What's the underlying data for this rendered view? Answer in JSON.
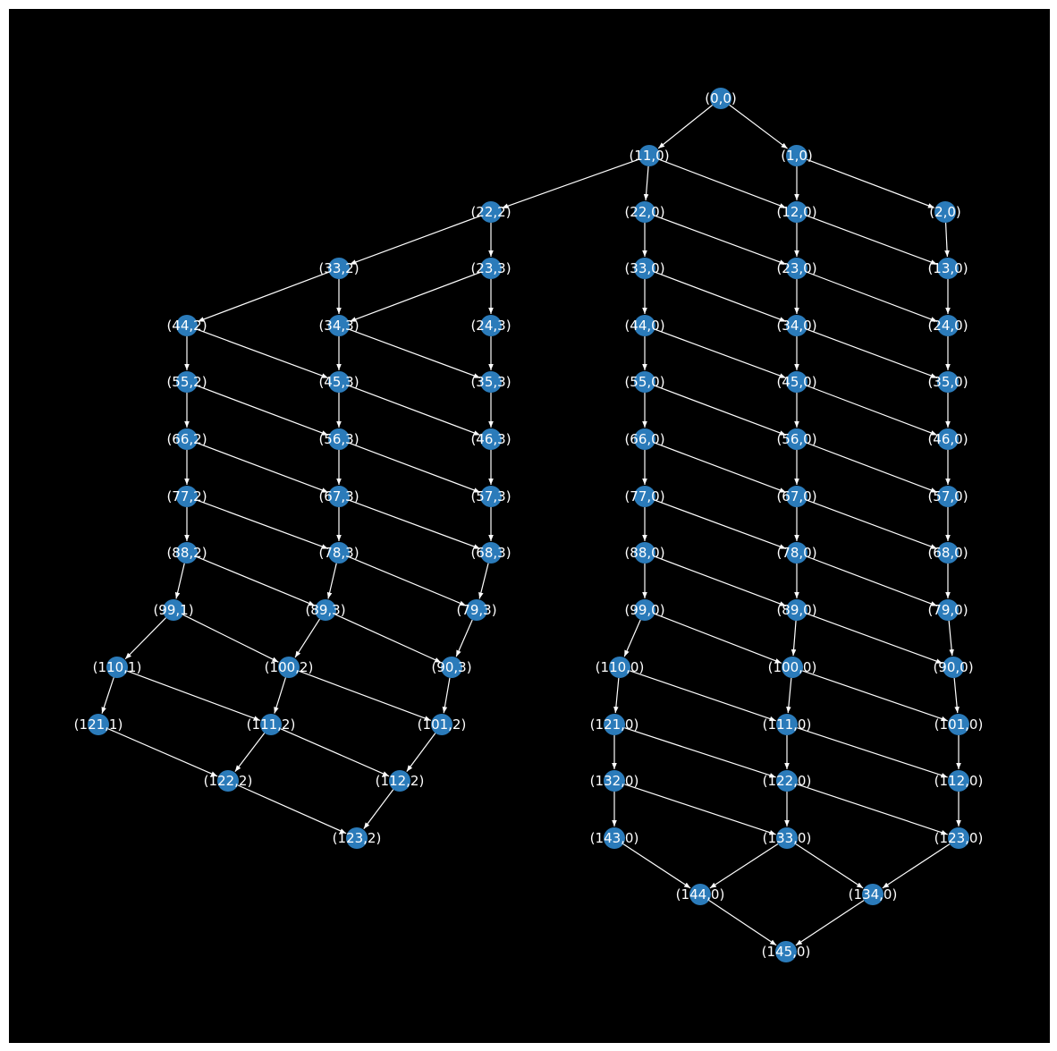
{
  "graph": {
    "background": "#000000",
    "frame_color": "#ffffff",
    "node_color": "#2b7bba",
    "edge_color": "#ffffff",
    "label_color": "#ffffff",
    "nodes": [
      {
        "id": "(0,0)"
      },
      {
        "id": "(11,0)"
      },
      {
        "id": "(1,0)"
      },
      {
        "id": "(22,2)"
      },
      {
        "id": "(22,0)"
      },
      {
        "id": "(12,0)"
      },
      {
        "id": "(2,0)"
      },
      {
        "id": "(33,2)"
      },
      {
        "id": "(23,3)"
      },
      {
        "id": "(33,0)"
      },
      {
        "id": "(23,0)"
      },
      {
        "id": "(13,0)"
      },
      {
        "id": "(44,2)"
      },
      {
        "id": "(34,3)"
      },
      {
        "id": "(24,3)"
      },
      {
        "id": "(44,0)"
      },
      {
        "id": "(34,0)"
      },
      {
        "id": "(24,0)"
      },
      {
        "id": "(55,2)"
      },
      {
        "id": "(45,3)"
      },
      {
        "id": "(35,3)"
      },
      {
        "id": "(55,0)"
      },
      {
        "id": "(45,0)"
      },
      {
        "id": "(35,0)"
      },
      {
        "id": "(66,2)"
      },
      {
        "id": "(56,3)"
      },
      {
        "id": "(46,3)"
      },
      {
        "id": "(66,0)"
      },
      {
        "id": "(56,0)"
      },
      {
        "id": "(46,0)"
      },
      {
        "id": "(77,2)"
      },
      {
        "id": "(67,3)"
      },
      {
        "id": "(57,3)"
      },
      {
        "id": "(77,0)"
      },
      {
        "id": "(67,0)"
      },
      {
        "id": "(57,0)"
      },
      {
        "id": "(88,2)"
      },
      {
        "id": "(78,3)"
      },
      {
        "id": "(68,3)"
      },
      {
        "id": "(88,0)"
      },
      {
        "id": "(78,0)"
      },
      {
        "id": "(68,0)"
      },
      {
        "id": "(99,1)"
      },
      {
        "id": "(89,3)"
      },
      {
        "id": "(79,3)"
      },
      {
        "id": "(99,0)"
      },
      {
        "id": "(89,0)"
      },
      {
        "id": "(79,0)"
      },
      {
        "id": "(110,1)"
      },
      {
        "id": "(100,2)"
      },
      {
        "id": "(90,3)"
      },
      {
        "id": "(110,0)"
      },
      {
        "id": "(100,0)"
      },
      {
        "id": "(90,0)"
      },
      {
        "id": "(121,1)"
      },
      {
        "id": "(111,2)"
      },
      {
        "id": "(101,2)"
      },
      {
        "id": "(121,0)"
      },
      {
        "id": "(111,0)"
      },
      {
        "id": "(101,0)"
      },
      {
        "id": "(122,2)"
      },
      {
        "id": "(112,2)"
      },
      {
        "id": "(132,0)"
      },
      {
        "id": "(122,0)"
      },
      {
        "id": "(112,0)"
      },
      {
        "id": "(123,2)"
      },
      {
        "id": "(143,0)"
      },
      {
        "id": "(133,0)"
      },
      {
        "id": "(123,0)"
      },
      {
        "id": "(144,0)"
      },
      {
        "id": "(134,0)"
      },
      {
        "id": "(145,0)"
      }
    ],
    "edges": [
      [
        "(0,0)",
        "(11,0)"
      ],
      [
        "(0,0)",
        "(1,0)"
      ],
      [
        "(1,0)",
        "(12,0)"
      ],
      [
        "(1,0)",
        "(2,0)"
      ],
      [
        "(11,0)",
        "(22,2)"
      ],
      [
        "(11,0)",
        "(22,0)"
      ],
      [
        "(11,0)",
        "(12,0)"
      ],
      [
        "(2,0)",
        "(13,0)"
      ],
      [
        "(12,0)",
        "(23,0)"
      ],
      [
        "(12,0)",
        "(13,0)"
      ],
      [
        "(22,0)",
        "(33,0)"
      ],
      [
        "(22,0)",
        "(23,0)"
      ],
      [
        "(22,2)",
        "(33,2)"
      ],
      [
        "(22,2)",
        "(23,3)"
      ],
      [
        "(33,2)",
        "(44,2)"
      ],
      [
        "(33,2)",
        "(34,3)"
      ],
      [
        "(23,3)",
        "(34,3)"
      ],
      [
        "(23,3)",
        "(24,3)"
      ],
      [
        "(33,0)",
        "(44,0)"
      ],
      [
        "(33,0)",
        "(34,0)"
      ],
      [
        "(23,0)",
        "(34,0)"
      ],
      [
        "(23,0)",
        "(24,0)"
      ],
      [
        "(13,0)",
        "(24,0)"
      ],
      [
        "(44,2)",
        "(55,2)"
      ],
      [
        "(44,2)",
        "(45,3)"
      ],
      [
        "(34,3)",
        "(45,3)"
      ],
      [
        "(34,3)",
        "(35,3)"
      ],
      [
        "(24,3)",
        "(35,3)"
      ],
      [
        "(44,0)",
        "(55,0)"
      ],
      [
        "(44,0)",
        "(45,0)"
      ],
      [
        "(34,0)",
        "(45,0)"
      ],
      [
        "(34,0)",
        "(35,0)"
      ],
      [
        "(24,0)",
        "(35,0)"
      ],
      [
        "(55,2)",
        "(66,2)"
      ],
      [
        "(55,2)",
        "(56,3)"
      ],
      [
        "(45,3)",
        "(56,3)"
      ],
      [
        "(45,3)",
        "(46,3)"
      ],
      [
        "(35,3)",
        "(46,3)"
      ],
      [
        "(55,0)",
        "(66,0)"
      ],
      [
        "(55,0)",
        "(56,0)"
      ],
      [
        "(45,0)",
        "(56,0)"
      ],
      [
        "(45,0)",
        "(46,0)"
      ],
      [
        "(35,0)",
        "(46,0)"
      ],
      [
        "(66,2)",
        "(77,2)"
      ],
      [
        "(66,2)",
        "(67,3)"
      ],
      [
        "(56,3)",
        "(67,3)"
      ],
      [
        "(56,3)",
        "(57,3)"
      ],
      [
        "(46,3)",
        "(57,3)"
      ],
      [
        "(66,0)",
        "(77,0)"
      ],
      [
        "(66,0)",
        "(67,0)"
      ],
      [
        "(56,0)",
        "(67,0)"
      ],
      [
        "(56,0)",
        "(57,0)"
      ],
      [
        "(46,0)",
        "(57,0)"
      ],
      [
        "(77,2)",
        "(88,2)"
      ],
      [
        "(77,2)",
        "(78,3)"
      ],
      [
        "(67,3)",
        "(78,3)"
      ],
      [
        "(67,3)",
        "(68,3)"
      ],
      [
        "(57,3)",
        "(68,3)"
      ],
      [
        "(77,0)",
        "(88,0)"
      ],
      [
        "(77,0)",
        "(78,0)"
      ],
      [
        "(67,0)",
        "(78,0)"
      ],
      [
        "(67,0)",
        "(68,0)"
      ],
      [
        "(57,0)",
        "(68,0)"
      ],
      [
        "(88,2)",
        "(99,1)"
      ],
      [
        "(88,2)",
        "(89,3)"
      ],
      [
        "(78,3)",
        "(89,3)"
      ],
      [
        "(78,3)",
        "(79,3)"
      ],
      [
        "(68,3)",
        "(79,3)"
      ],
      [
        "(88,0)",
        "(99,0)"
      ],
      [
        "(88,0)",
        "(89,0)"
      ],
      [
        "(78,0)",
        "(89,0)"
      ],
      [
        "(78,0)",
        "(79,0)"
      ],
      [
        "(68,0)",
        "(79,0)"
      ],
      [
        "(99,1)",
        "(110,1)"
      ],
      [
        "(99,1)",
        "(100,2)"
      ],
      [
        "(89,3)",
        "(100,2)"
      ],
      [
        "(89,3)",
        "(90,3)"
      ],
      [
        "(79,3)",
        "(90,3)"
      ],
      [
        "(99,0)",
        "(110,0)"
      ],
      [
        "(99,0)",
        "(100,0)"
      ],
      [
        "(89,0)",
        "(100,0)"
      ],
      [
        "(89,0)",
        "(90,0)"
      ],
      [
        "(79,0)",
        "(90,0)"
      ],
      [
        "(110,1)",
        "(121,1)"
      ],
      [
        "(110,1)",
        "(111,2)"
      ],
      [
        "(100,2)",
        "(111,2)"
      ],
      [
        "(100,2)",
        "(101,2)"
      ],
      [
        "(90,3)",
        "(101,2)"
      ],
      [
        "(110,0)",
        "(121,0)"
      ],
      [
        "(110,0)",
        "(111,0)"
      ],
      [
        "(100,0)",
        "(111,0)"
      ],
      [
        "(100,0)",
        "(101,0)"
      ],
      [
        "(90,0)",
        "(101,0)"
      ],
      [
        "(121,1)",
        "(122,2)"
      ],
      [
        "(111,2)",
        "(122,2)"
      ],
      [
        "(111,2)",
        "(112,2)"
      ],
      [
        "(101,2)",
        "(112,2)"
      ],
      [
        "(121,0)",
        "(132,0)"
      ],
      [
        "(121,0)",
        "(122,0)"
      ],
      [
        "(111,0)",
        "(122,0)"
      ],
      [
        "(111,0)",
        "(112,0)"
      ],
      [
        "(101,0)",
        "(112,0)"
      ],
      [
        "(122,2)",
        "(123,2)"
      ],
      [
        "(112,2)",
        "(123,2)"
      ],
      [
        "(132,0)",
        "(143,0)"
      ],
      [
        "(132,0)",
        "(133,0)"
      ],
      [
        "(122,0)",
        "(133,0)"
      ],
      [
        "(122,0)",
        "(123,0)"
      ],
      [
        "(112,0)",
        "(123,0)"
      ],
      [
        "(143,0)",
        "(144,0)"
      ],
      [
        "(133,0)",
        "(144,0)"
      ],
      [
        "(133,0)",
        "(134,0)"
      ],
      [
        "(123,0)",
        "(134,0)"
      ],
      [
        "(144,0)",
        "(145,0)"
      ],
      [
        "(134,0)",
        "(145,0)"
      ]
    ]
  }
}
